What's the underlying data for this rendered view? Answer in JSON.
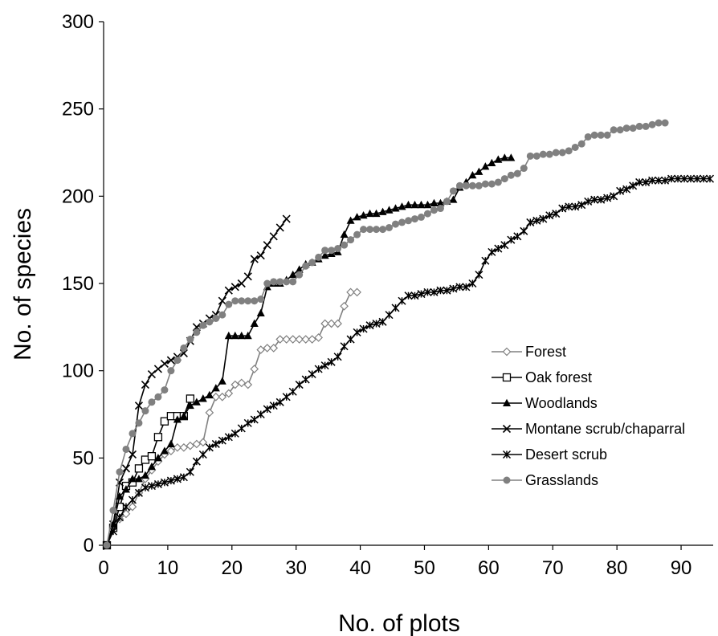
{
  "chart_data": {
    "type": "line",
    "title": "",
    "xlabel": "No. of plots",
    "ylabel": "No. of species",
    "xlim": [
      0,
      95
    ],
    "ylim": [
      0,
      300
    ],
    "x_ticks": [
      0,
      10,
      20,
      30,
      40,
      50,
      60,
      70,
      80,
      90
    ],
    "y_ticks": [
      0,
      50,
      100,
      150,
      200,
      250,
      300
    ],
    "grid": false,
    "legend_position": "right",
    "series": [
      {
        "name": "Forest",
        "marker": "diamond-open",
        "color": "#808080",
        "x": [
          0.5,
          1.5,
          2.5,
          3.5,
          4.5,
          5.5,
          6.5,
          7.5,
          8.5,
          9.5,
          10.5,
          11.5,
          12.5,
          13.5,
          14.5,
          15.5,
          16.5,
          17.5,
          18.5,
          19.5,
          20.5,
          21.5,
          22.5,
          23.5,
          24.5,
          25.5,
          26.5,
          27.5,
          28.5,
          29.5,
          30.5,
          31.5,
          32.5,
          33.5,
          34.5,
          35.5,
          36.5,
          37.5,
          38.5,
          39.5
        ],
        "y": [
          0,
          10,
          15,
          18,
          22,
          30,
          38,
          43,
          48,
          52,
          54,
          56,
          56,
          57,
          58,
          59,
          76,
          85,
          85,
          87,
          92,
          93,
          92,
          101,
          112,
          113,
          113,
          118,
          118,
          118,
          118,
          118,
          118,
          119,
          127,
          127,
          127,
          137,
          145,
          145
        ]
      },
      {
        "name": "Oak forest",
        "marker": "square-open",
        "color": "#000000",
        "x": [
          0.5,
          1.5,
          2.5,
          3.5,
          4.5,
          5.5,
          6.5,
          7.5,
          8.5,
          9.5,
          10.5,
          11.5,
          12.5,
          13.5
        ],
        "y": [
          0,
          10,
          22,
          34,
          36,
          44,
          49,
          51,
          62,
          71,
          74,
          74,
          74,
          84
        ]
      },
      {
        "name": "Woodlands",
        "marker": "triangle-filled",
        "color": "#000000",
        "x": [
          0.5,
          1.5,
          2.5,
          3.5,
          4.5,
          5.5,
          6.5,
          7.5,
          8.5,
          9.5,
          10.5,
          11.5,
          12.5,
          13.5,
          14.5,
          15.5,
          16.5,
          17.5,
          18.5,
          19.5,
          20.5,
          21.5,
          22.5,
          23.5,
          24.5,
          25.5,
          26.5,
          27.5,
          28.5,
          29.5,
          30.5,
          31.5,
          32.5,
          33.5,
          34.5,
          35.5,
          36.5,
          37.5,
          38.5,
          39.5,
          40.5,
          41.5,
          42.5,
          43.5,
          44.5,
          45.5,
          46.5,
          47.5,
          48.5,
          49.5,
          50.5,
          51.5,
          52.5,
          53.5,
          54.5,
          55.5,
          56.5,
          57.5,
          58.5,
          59.5,
          60.5,
          61.5,
          62.5,
          63.5
        ],
        "y": [
          0,
          12,
          28,
          32,
          38,
          38,
          40,
          45,
          50,
          54,
          58,
          72,
          74,
          80,
          82,
          84,
          86,
          90,
          94,
          120,
          120,
          120,
          120,
          127,
          133,
          148,
          150,
          150,
          152,
          155,
          158,
          161,
          162,
          164,
          166,
          167,
          168,
          178,
          186,
          188,
          189,
          190,
          190,
          191,
          192,
          193,
          194,
          195,
          195,
          195,
          195,
          196,
          196,
          197,
          198,
          205,
          208,
          212,
          214,
          217,
          219,
          221,
          222,
          222
        ]
      },
      {
        "name": "Montane scrub/chaparral",
        "marker": "x",
        "color": "#000000",
        "x": [
          0.5,
          1.5,
          2.5,
          3.5,
          4.5,
          5.5,
          6.5,
          7.5,
          8.5,
          9.5,
          10.5,
          11.5,
          12.5,
          13.5,
          14.5,
          15.5,
          16.5,
          17.5,
          18.5,
          19.5,
          20.5,
          21.5,
          22.5,
          23.5,
          24.5,
          25.5,
          26.5,
          27.5,
          28.5
        ],
        "y": [
          0,
          12,
          36,
          44,
          52,
          80,
          92,
          98,
          101,
          104,
          106,
          108,
          110,
          117,
          125,
          127,
          130,
          132,
          140,
          146,
          148,
          150,
          154,
          164,
          166,
          172,
          177,
          182,
          187
        ]
      },
      {
        "name": "Desert scrub",
        "marker": "asterisk",
        "color": "#000000",
        "x": [
          0.5,
          1.5,
          2.5,
          3.5,
          4.5,
          5.5,
          6.5,
          7.5,
          8.5,
          9.5,
          10.5,
          11.5,
          12.5,
          13.5,
          14.5,
          15.5,
          16.5,
          17.5,
          18.5,
          19.5,
          20.5,
          21.5,
          22.5,
          23.5,
          24.5,
          25.5,
          26.5,
          27.5,
          28.5,
          29.5,
          30.5,
          31.5,
          32.5,
          33.5,
          34.5,
          35.5,
          36.5,
          37.5,
          38.5,
          39.5,
          40.5,
          41.5,
          42.5,
          43.5,
          44.5,
          45.5,
          46.5,
          47.5,
          48.5,
          49.5,
          50.5,
          51.5,
          52.5,
          53.5,
          54.5,
          55.5,
          56.5,
          57.5,
          58.5,
          59.5,
          60.5,
          61.5,
          62.5,
          63.5,
          64.5,
          65.5,
          66.5,
          67.5,
          68.5,
          69.5,
          70.5,
          71.5,
          72.5,
          73.5,
          74.5,
          75.5,
          76.5,
          77.5,
          78.5,
          79.5,
          80.5,
          81.5,
          82.5,
          83.5,
          84.5,
          85.5,
          86.5,
          87.5,
          88.5,
          89.5,
          90.5,
          91.5,
          92.5,
          93.5,
          94.5
        ],
        "y": [
          0,
          8,
          16,
          22,
          26,
          30,
          33,
          34,
          35,
          36,
          37,
          38,
          39,
          42,
          48,
          52,
          56,
          58,
          60,
          62,
          64,
          67,
          70,
          72,
          75,
          78,
          80,
          82,
          85,
          88,
          92,
          95,
          98,
          101,
          103,
          105,
          108,
          114,
          118,
          122,
          124,
          126,
          127,
          128,
          132,
          136,
          140,
          143,
          143,
          144,
          145,
          145,
          146,
          146,
          147,
          148,
          148,
          150,
          155,
          163,
          168,
          170,
          172,
          175,
          177,
          180,
          185,
          186,
          187,
          189,
          190,
          193,
          194,
          194,
          195,
          197,
          198,
          198,
          199,
          200,
          203,
          204,
          206,
          208,
          208,
          209,
          209,
          209,
          210,
          210,
          210,
          210,
          210,
          210,
          210
        ]
      },
      {
        "name": "Grasslands",
        "marker": "circle-filled",
        "color": "#808080",
        "x": [
          0.5,
          1.5,
          2.5,
          3.5,
          4.5,
          5.5,
          6.5,
          7.5,
          8.5,
          9.5,
          10.5,
          11.5,
          12.5,
          13.5,
          14.5,
          15.5,
          16.5,
          17.5,
          18.5,
          19.5,
          20.5,
          21.5,
          22.5,
          23.5,
          24.5,
          25.5,
          26.5,
          27.5,
          28.5,
          29.5,
          30.5,
          31.5,
          32.5,
          33.5,
          34.5,
          35.5,
          36.5,
          37.5,
          38.5,
          39.5,
          40.5,
          41.5,
          42.5,
          43.5,
          44.5,
          45.5,
          46.5,
          47.5,
          48.5,
          49.5,
          50.5,
          51.5,
          52.5,
          53.5,
          54.5,
          55.5,
          56.5,
          57.5,
          58.5,
          59.5,
          60.5,
          61.5,
          62.5,
          63.5,
          64.5,
          65.5,
          66.5,
          67.5,
          68.5,
          69.5,
          70.5,
          71.5,
          72.5,
          73.5,
          74.5,
          75.5,
          76.5,
          77.5,
          78.5,
          79.5,
          80.5,
          81.5,
          82.5,
          83.5,
          84.5,
          85.5,
          86.5,
          87.5
        ],
        "y": [
          0,
          20,
          42,
          55,
          64,
          70,
          77,
          82,
          85,
          89,
          100,
          106,
          113,
          118,
          122,
          126,
          128,
          130,
          132,
          138,
          140,
          140,
          140,
          140,
          141,
          150,
          151,
          151,
          151,
          151,
          155,
          160,
          162,
          165,
          169,
          169,
          170,
          172,
          175,
          178,
          181,
          181,
          181,
          181,
          182,
          184,
          185,
          186,
          187,
          188,
          190,
          192,
          193,
          197,
          203,
          206,
          206,
          206,
          206,
          207,
          207,
          208,
          210,
          212,
          213,
          216,
          223,
          223,
          224,
          224,
          225,
          225,
          226,
          228,
          230,
          234,
          235,
          235,
          235,
          238,
          238,
          239,
          239,
          240,
          240,
          241,
          242,
          242
        ]
      }
    ]
  }
}
